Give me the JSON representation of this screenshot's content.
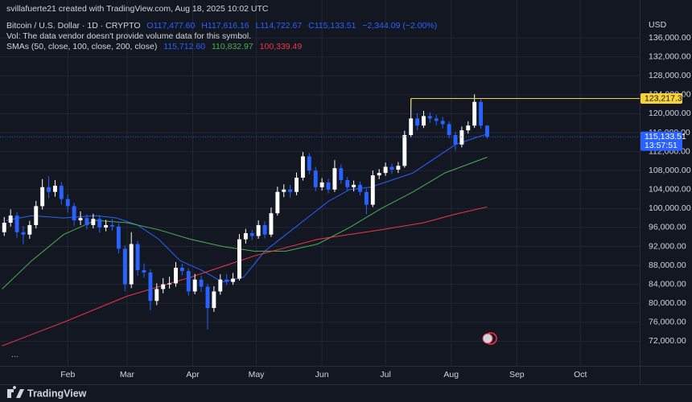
{
  "chart_data": {
    "type": "candlestick",
    "header": {
      "credit": "svillafuerte21 created with TradingView.com, Aug 18, 2025 10:02 UTC",
      "symbol": "Bitcoin / U.S. Dollar · 1D · CRYPTO",
      "ohlc": [
        "O117,477.60",
        "H117,616.16",
        "L114,722.67",
        "C115,133.51"
      ],
      "change": "−2,344.09 (−2.00%)",
      "vol_note": "Vol: The data vendor doesn't provide volume data for this symbol.",
      "sma_title": "SMAs (50, close, 100, close, 200, close)",
      "sma_values": [
        "115,712.60",
        "110,832.97",
        "100,339.49"
      ]
    },
    "currency": "USD",
    "ellipsis": "...",
    "brand": "TradingView",
    "up_color": "#ffffff",
    "down_color": "#2962ff",
    "grid": true,
    "xlim": [
      0,
      302
    ],
    "xticks": [
      {
        "value": 32,
        "label": "Feb"
      },
      {
        "value": 60,
        "label": "Mar"
      },
      {
        "value": 91,
        "label": "Apr"
      },
      {
        "value": 121,
        "label": "May"
      },
      {
        "value": 152,
        "label": "Jun"
      },
      {
        "value": 182,
        "label": "Jul"
      },
      {
        "value": 213,
        "label": "Aug"
      },
      {
        "value": 244,
        "label": "Sep"
      },
      {
        "value": 274,
        "label": "Oct"
      }
    ],
    "ylim": [
      66800,
      144000
    ],
    "yticks": [
      {
        "value": 72000,
        "label": "72,000.00"
      },
      {
        "value": 76000,
        "label": "76,000.00"
      },
      {
        "value": 80000,
        "label": "80,000.00"
      },
      {
        "value": 84000,
        "label": "84,000.00"
      },
      {
        "value": 88000,
        "label": "88,000.00"
      },
      {
        "value": 92000,
        "label": "92,000.00"
      },
      {
        "value": 96000,
        "label": "96,000.00"
      },
      {
        "value": 100000,
        "label": "100,000.00"
      },
      {
        "value": 104000,
        "label": "104,000.00"
      },
      {
        "value": 108000,
        "label": "108,000.00"
      },
      {
        "value": 112000,
        "label": "112,000.00"
      },
      {
        "value": 116000,
        "label": "116,000.00"
      },
      {
        "value": 120000,
        "label": "120,000.00"
      },
      {
        "value": 124000,
        "label": "124,000.00"
      },
      {
        "value": 128000,
        "label": "128,000.00"
      },
      {
        "value": 132000,
        "label": "132,000.00"
      },
      {
        "value": 136000,
        "label": "136,000.00"
      }
    ],
    "candles": {
      "x": [
        2,
        5,
        8,
        11,
        14,
        17,
        20,
        23,
        26,
        29,
        32,
        35,
        38,
        41,
        44,
        47,
        50,
        53,
        56,
        59,
        62,
        65,
        68,
        71,
        74,
        77,
        80,
        83,
        86,
        89,
        92,
        95,
        98,
        101,
        104,
        107,
        110,
        113,
        116,
        119,
        122,
        125,
        128,
        131,
        134,
        137,
        140,
        143,
        146,
        149,
        152,
        155,
        158,
        161,
        164,
        167,
        170,
        173,
        176,
        179,
        182,
        185,
        188,
        191,
        194,
        197,
        200,
        203,
        206,
        209,
        212,
        215,
        218,
        221,
        224,
        227,
        230
      ],
      "open": [
        95000,
        97000,
        98500,
        95000,
        94500,
        96500,
        100500,
        104500,
        103500,
        104800,
        102000,
        100500,
        97500,
        98000,
        96500,
        97800,
        96000,
        96500,
        96200,
        91500,
        84000,
        92500,
        87000,
        86500,
        80500,
        83000,
        84000,
        84200,
        87500,
        86800,
        82500,
        85000,
        83500,
        79000,
        82500,
        85000,
        84500,
        85200,
        93500,
        94800,
        94200,
        96500,
        94500,
        99000,
        103500,
        104000,
        103500,
        106500,
        111000,
        108000,
        104500,
        105500,
        104000,
        108500,
        106000,
        104500,
        105000,
        103500,
        100800,
        107000,
        107500,
        108800,
        108200,
        109000,
        115500,
        119000,
        117500,
        119500,
        119000,
        118500,
        117800,
        115500,
        113500,
        116500,
        117500,
        122500,
        117477.6
      ],
      "high": [
        98200,
        99800,
        99200,
        96300,
        97400,
        101600,
        106200,
        106800,
        106000,
        105600,
        103000,
        101200,
        99400,
        98800,
        98900,
        98600,
        97600,
        97800,
        96900,
        92200,
        95000,
        93200,
        88400,
        87200,
        84200,
        85300,
        85600,
        88700,
        88400,
        87400,
        86200,
        85900,
        84100,
        83600,
        86100,
        86200,
        86400,
        94600,
        95700,
        95500,
        97500,
        97300,
        100200,
        104600,
        105100,
        105000,
        107600,
        111900,
        111700,
        108800,
        106400,
        106300,
        110200,
        109300,
        106700,
        105900,
        105700,
        104200,
        108000,
        108300,
        109700,
        109500,
        109800,
        116400,
        123217.39,
        120100,
        120600,
        120300,
        119800,
        119300,
        118400,
        116200,
        117300,
        118400,
        124100,
        123100,
        117616.16
      ],
      "low": [
        94200,
        96200,
        93800,
        92500,
        93600,
        95800,
        99800,
        102200,
        102500,
        100800,
        99200,
        96300,
        96500,
        95600,
        95800,
        94900,
        95200,
        95300,
        90500,
        82500,
        83200,
        85800,
        85400,
        78500,
        79600,
        82100,
        83100,
        83500,
        85900,
        81600,
        81900,
        82400,
        74500,
        78200,
        81800,
        83800,
        83900,
        84800,
        92600,
        93300,
        93600,
        93700,
        94000,
        98500,
        102400,
        102300,
        102800,
        105900,
        107200,
        103600,
        103800,
        103200,
        103500,
        105200,
        103800,
        103600,
        102800,
        98800,
        100300,
        106200,
        106900,
        107300,
        107500,
        108600,
        115000,
        116500,
        117000,
        118100,
        117600,
        116900,
        114800,
        112200,
        112900,
        115800,
        117000,
        116800,
        114722.67
      ],
      "close": [
        97000,
        98500,
        95000,
        94500,
        96500,
        100500,
        104500,
        103500,
        104800,
        102000,
        100500,
        97500,
        98000,
        96500,
        97800,
        96000,
        96500,
        96200,
        91500,
        84000,
        92500,
        87000,
        86500,
        80500,
        83000,
        84000,
        84200,
        87500,
        86800,
        82500,
        85000,
        83500,
        79000,
        82500,
        85000,
        84500,
        85200,
        93500,
        94800,
        94200,
        96500,
        94500,
        99000,
        103500,
        104000,
        103500,
        106500,
        111000,
        108000,
        104500,
        105500,
        104000,
        108500,
        106000,
        104500,
        105000,
        103500,
        100800,
        107000,
        107500,
        108800,
        108200,
        109000,
        115500,
        119000,
        117500,
        119500,
        119000,
        118500,
        117800,
        115500,
        113500,
        116500,
        117500,
        122500,
        117477.6,
        115133.51
      ]
    },
    "series": [
      {
        "color": "#2962ff",
        "x": [
          3,
          15,
          30,
          45,
          55,
          65,
          75,
          85,
          95,
          105,
          115,
          125,
          135,
          145,
          155,
          165,
          175,
          185,
          195,
          205,
          215,
          225,
          230
        ],
        "values": [
          97500,
          98500,
          98000,
          98500,
          98000,
          96500,
          93500,
          89000,
          87000,
          84500,
          85500,
          91000,
          94500,
          98000,
          101500,
          104000,
          104500,
          106000,
          107500,
          110500,
          113500,
          115000,
          115712.6
        ]
      },
      {
        "color": "#4caf50",
        "x": [
          1,
          15,
          30,
          45,
          60,
          75,
          90,
          105,
          120,
          135,
          150,
          165,
          180,
          195,
          210,
          225,
          230
        ],
        "values": [
          83000,
          89000,
          94500,
          97500,
          97000,
          95500,
          93500,
          92000,
          91000,
          91000,
          92500,
          96000,
          100000,
          103500,
          107500,
          110000,
          110832.97
        ]
      },
      {
        "color": "#f23645",
        "x": [
          1,
          30,
          60,
          90,
          120,
          150,
          180,
          200,
          215,
          230
        ],
        "values": [
          71000,
          76000,
          81500,
          85500,
          90000,
          93500,
          95500,
          97000,
          98800,
          100339.49
        ]
      }
    ],
    "annotations": [
      {
        "value": 123217.39,
        "label": "123,217.39",
        "color": "#f7d23a",
        "from_x": 194
      },
      {
        "value": 115133.51,
        "label": "115,133.51",
        "color": "#2962ff",
        "countdown": "13:57:51"
      }
    ]
  }
}
